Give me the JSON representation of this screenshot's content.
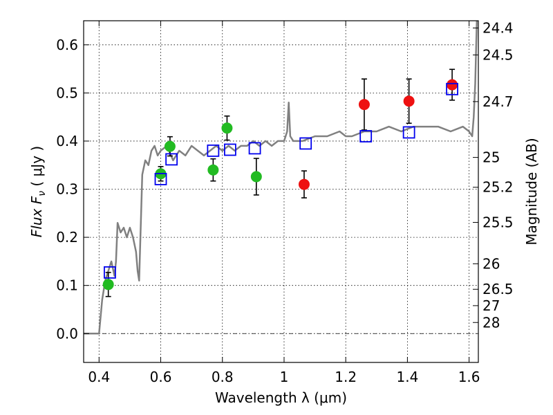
{
  "chart_data": {
    "type": "scatter",
    "title": "",
    "xlabel": "Wavelength  λ (μm)",
    "ylabel": "Flux  F",
    "ylabel_sub": "ν",
    "ylabel_unit": " ( μJy )",
    "ylabel_right": "Magnitude (AB)",
    "xlim": [
      0.35,
      1.63
    ],
    "ylim": [
      -0.06,
      0.65
    ],
    "xticks": [
      0.4,
      0.6,
      0.8,
      1.0,
      1.2,
      1.4,
      1.6
    ],
    "xtick_labels": [
      "0.4",
      "0.6",
      "0.8",
      "1",
      "1.2",
      "1.4",
      "1.6"
    ],
    "yticks": [
      0.0,
      0.1,
      0.2,
      0.3,
      0.4,
      0.5,
      0.6
    ],
    "ytick_labels": [
      "0.0",
      "0.1",
      "0.2",
      "0.3",
      "0.4",
      "0.5",
      "0.6"
    ],
    "right_ticks": [
      {
        "label": "24.4",
        "flux": 0.635
      },
      {
        "label": "24.5",
        "flux": 0.579
      },
      {
        "label": "24.7",
        "flux": 0.482
      },
      {
        "label": "25",
        "flux": 0.366
      },
      {
        "label": "25.2",
        "flux": 0.304
      },
      {
        "label": "25.5",
        "flux": 0.231
      },
      {
        "label": "26",
        "flux": 0.145
      },
      {
        "label": "26.5",
        "flux": 0.092
      },
      {
        "label": "27",
        "flux": 0.058
      },
      {
        "label": "28",
        "flux": 0.023
      }
    ],
    "grid": true,
    "colors": {
      "spectrum": "#808080",
      "green": "#22bb22",
      "red": "#ee1111",
      "model_box": "#0000ee",
      "errorbar": "#000000"
    },
    "series": [
      {
        "kind": "line",
        "color": "spectrum",
        "x": [
          0.35,
          0.38,
          0.4,
          0.41,
          0.42,
          0.43,
          0.44,
          0.45,
          0.455,
          0.46,
          0.47,
          0.48,
          0.49,
          0.5,
          0.51,
          0.52,
          0.525,
          0.53,
          0.54,
          0.55,
          0.56,
          0.57,
          0.58,
          0.59,
          0.6,
          0.62,
          0.64,
          0.66,
          0.68,
          0.7,
          0.72,
          0.74,
          0.76,
          0.78,
          0.8,
          0.82,
          0.84,
          0.86,
          0.88,
          0.9,
          0.92,
          0.94,
          0.96,
          0.98,
          1.0,
          1.01,
          1.015,
          1.02,
          1.03,
          1.06,
          1.1,
          1.14,
          1.18,
          1.2,
          1.22,
          1.26,
          1.3,
          1.34,
          1.38,
          1.42,
          1.46,
          1.5,
          1.54,
          1.58,
          1.6,
          1.61,
          1.615,
          1.62,
          1.625
        ],
        "y": [
          0.0,
          0.0,
          0.0,
          0.07,
          0.11,
          0.13,
          0.15,
          0.12,
          0.15,
          0.23,
          0.21,
          0.22,
          0.2,
          0.22,
          0.2,
          0.17,
          0.13,
          0.11,
          0.33,
          0.36,
          0.35,
          0.38,
          0.39,
          0.37,
          0.38,
          0.39,
          0.36,
          0.38,
          0.37,
          0.39,
          0.38,
          0.37,
          0.38,
          0.39,
          0.38,
          0.39,
          0.38,
          0.39,
          0.39,
          0.4,
          0.39,
          0.4,
          0.39,
          0.4,
          0.4,
          0.42,
          0.48,
          0.41,
          0.4,
          0.4,
          0.41,
          0.41,
          0.42,
          0.41,
          0.41,
          0.42,
          0.42,
          0.43,
          0.42,
          0.43,
          0.43,
          0.43,
          0.42,
          0.43,
          0.42,
          0.41,
          0.45,
          0.52,
          0.65
        ]
      },
      {
        "kind": "points",
        "marker": "circle",
        "color": "green",
        "x": [
          0.43,
          0.6,
          0.63,
          0.77,
          0.815,
          0.91
        ],
        "y": [
          0.102,
          0.332,
          0.389,
          0.34,
          0.427,
          0.326
        ],
        "yerr": [
          0.025,
          0.015,
          0.02,
          0.023,
          0.025,
          0.038
        ]
      },
      {
        "kind": "points",
        "marker": "circle",
        "color": "red",
        "x": [
          1.065,
          1.26,
          1.405,
          1.545
        ],
        "y": [
          0.31,
          0.476,
          0.483,
          0.517
        ],
        "yerr": [
          0.028,
          0.053,
          0.046,
          0.032
        ]
      },
      {
        "kind": "points",
        "marker": "square",
        "color": "model_box",
        "x": [
          0.435,
          0.6,
          0.635,
          0.77,
          0.825,
          0.905,
          1.07,
          1.265,
          1.405,
          1.545
        ],
        "y": [
          0.127,
          0.321,
          0.362,
          0.38,
          0.382,
          0.385,
          0.395,
          0.41,
          0.418,
          0.508
        ]
      }
    ]
  }
}
